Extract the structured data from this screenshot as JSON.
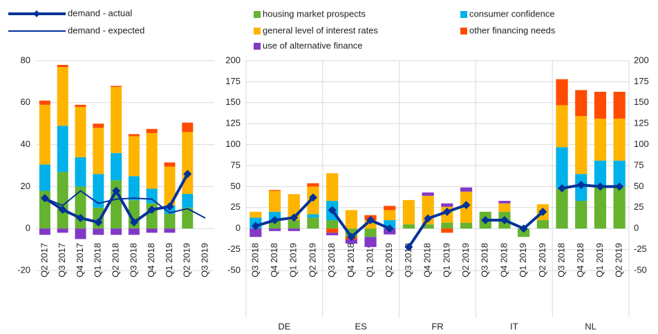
{
  "chart_data": [
    {
      "type": "bar",
      "stacked": true,
      "grid": true,
      "categories": [
        "Q2 2017",
        "Q3 2017",
        "Q4 2017",
        "Q1 2018",
        "Q2 2018",
        "Q3 2018",
        "Q4 2018",
        "Q1 2019",
        "Q2 2019",
        "Q3 2019"
      ],
      "ylim": [
        -20,
        80
      ],
      "yticks": [
        -20,
        0,
        20,
        40,
        60,
        80
      ],
      "series": [
        {
          "name": "housing market prospects",
          "color": "#65b32e",
          "values": [
            18,
            27,
            20,
            10,
            23,
            13.5,
            12,
            7,
            10,
            null
          ]
        },
        {
          "name": "consumer confidence",
          "color": "#00b1ea",
          "values": [
            12.5,
            22,
            14,
            16,
            13,
            11.5,
            7,
            4,
            6.5,
            null
          ]
        },
        {
          "name": "general level of interest rates",
          "color": "#ffb400",
          "values": [
            28.5,
            28,
            24,
            22,
            31.5,
            19,
            26.5,
            18.5,
            29.5,
            null
          ]
        },
        {
          "name": "other financing needs",
          "color": "#ff4b00",
          "values": [
            2,
            1,
            1,
            2,
            0.5,
            1,
            2,
            2,
            4.5,
            null
          ]
        },
        {
          "name": "use of alternative finance",
          "color": "#8139c6",
          "values": [
            -3,
            -2,
            -5,
            -3,
            -3,
            -3,
            -2,
            -2,
            0,
            null
          ]
        },
        {
          "name": "demand - actual",
          "type": "line",
          "marker": "diamond",
          "color": "#003299",
          "values": [
            14.5,
            9,
            5,
            3,
            18,
            3,
            9,
            10.5,
            26,
            null
          ]
        },
        {
          "name": "demand - expected",
          "type": "line",
          "color": "#003299",
          "values": [
            14.5,
            11,
            18,
            12,
            14,
            14.5,
            14,
            7.5,
            9.5,
            5
          ]
        }
      ]
    },
    {
      "type": "bar",
      "stacked": true,
      "grid": true,
      "both_axes": true,
      "groups": [
        "DE",
        "ES",
        "FR",
        "IT",
        "NL"
      ],
      "categories": [
        "Q3 2018",
        "Q4 2018",
        "Q1 2019",
        "Q2 2019",
        "Q3 2018",
        "Q4 2018",
        "Q1 2019",
        "Q2 2019",
        "Q3 2018",
        "Q4 2018",
        "Q1 2019",
        "Q2 2019",
        "Q3 2018",
        "Q4 2018",
        "Q1 2019",
        "Q2 2019",
        "Q3 2018",
        "Q4 2018",
        "Q1 2019",
        "Q2 2019"
      ],
      "ylim": [
        -50,
        200
      ],
      "yticks": [
        -50,
        -25,
        0,
        25,
        50,
        75,
        100,
        125,
        150,
        175,
        200
      ],
      "series": [
        {
          "name": "housing market prospects",
          "color": "#65b32e",
          "values": [
            0,
            10,
            10,
            13,
            10,
            -10,
            -10,
            0,
            5,
            5,
            7,
            7,
            20,
            20,
            -10,
            10,
            48,
            33,
            50,
            50
          ]
        },
        {
          "name": "consumer confidence",
          "color": "#00b1ea",
          "values": [
            13,
            10,
            0,
            4,
            23,
            0,
            0,
            10,
            0,
            0,
            0,
            0,
            0,
            0,
            0,
            0,
            49,
            32,
            31,
            31
          ]
        },
        {
          "name": "general level of interest rates",
          "color": "#ffb400",
          "values": [
            7,
            25,
            31,
            33,
            33,
            22,
            10,
            12,
            29,
            34,
            19,
            37,
            0,
            10,
            0,
            19,
            50,
            69,
            50,
            50
          ]
        },
        {
          "name": "other financing needs",
          "color": "#ff4b00",
          "values": [
            0,
            1,
            0,
            4,
            -5,
            -3,
            6,
            5,
            0,
            0,
            -5,
            0,
            0,
            0,
            0,
            0,
            31,
            31,
            32,
            32
          ]
        },
        {
          "name": "use of alternative finance",
          "color": "#8139c6",
          "values": [
            -10,
            -3,
            -3,
            0,
            -3,
            -5,
            -12,
            -7,
            0,
            4,
            4,
            5,
            0,
            3,
            0,
            0,
            0,
            0,
            0,
            0
          ]
        },
        {
          "name": "demand - actual",
          "type": "line",
          "marker": "diamond",
          "color": "#003299",
          "values": [
            3,
            10,
            13,
            37,
            22,
            -10,
            10,
            0,
            -22,
            12,
            20,
            28,
            10,
            10,
            0,
            20,
            48,
            52,
            50,
            50
          ]
        }
      ]
    }
  ]
}
